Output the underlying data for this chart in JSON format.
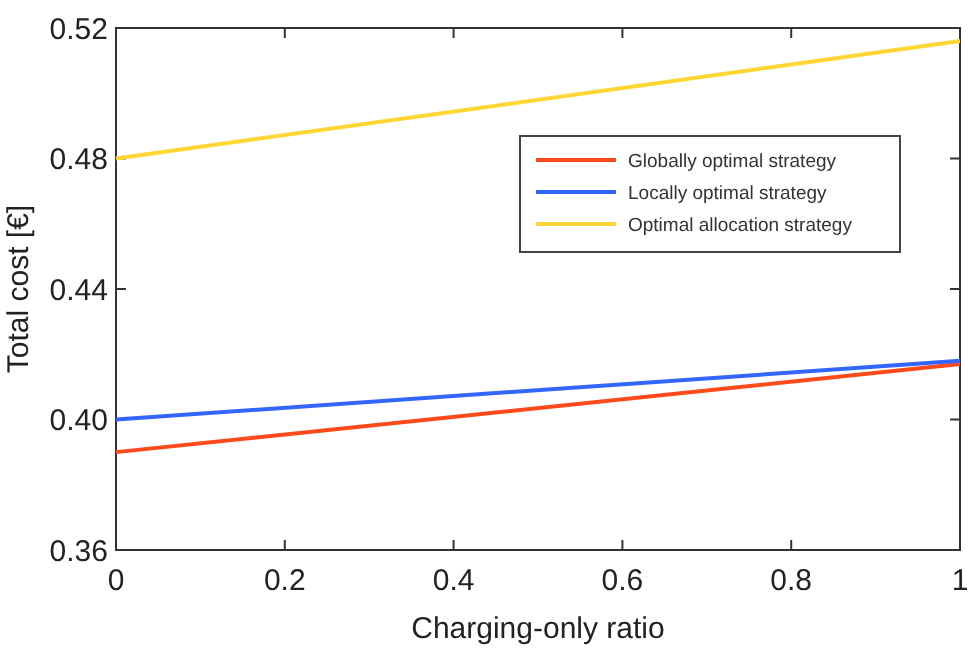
{
  "chart_data": {
    "type": "line",
    "xlabel": "Charging-only ratio",
    "ylabel": "Total cost [€]",
    "x": [
      0,
      1
    ],
    "series": [
      {
        "name": "Globally optimal strategy",
        "color": "#ff4a1c",
        "values": [
          0.39,
          0.417
        ]
      },
      {
        "name": "Locally optimal strategy",
        "color": "#3366ff",
        "values": [
          0.4,
          0.418
        ]
      },
      {
        "name": "Optimal allocation strategy",
        "color": "#ffd633",
        "values": [
          0.48,
          0.516
        ]
      }
    ],
    "xlim": [
      0,
      1
    ],
    "xticks": [
      0,
      0.2,
      0.4,
      0.6,
      0.8,
      1
    ],
    "ylim": [
      0.36,
      0.52
    ],
    "yticks": [
      {
        "value": 0.36,
        "label": "0.36"
      },
      {
        "value": 0.4,
        "label": "0.40"
      },
      {
        "value": 0.44,
        "label": "0.44"
      },
      {
        "value": 0.48,
        "label": "0.48"
      },
      {
        "value": 0.52,
        "label": "0.52"
      }
    ],
    "grid": false,
    "legend": "top right",
    "marker": "none",
    "line_style": "solid"
  }
}
